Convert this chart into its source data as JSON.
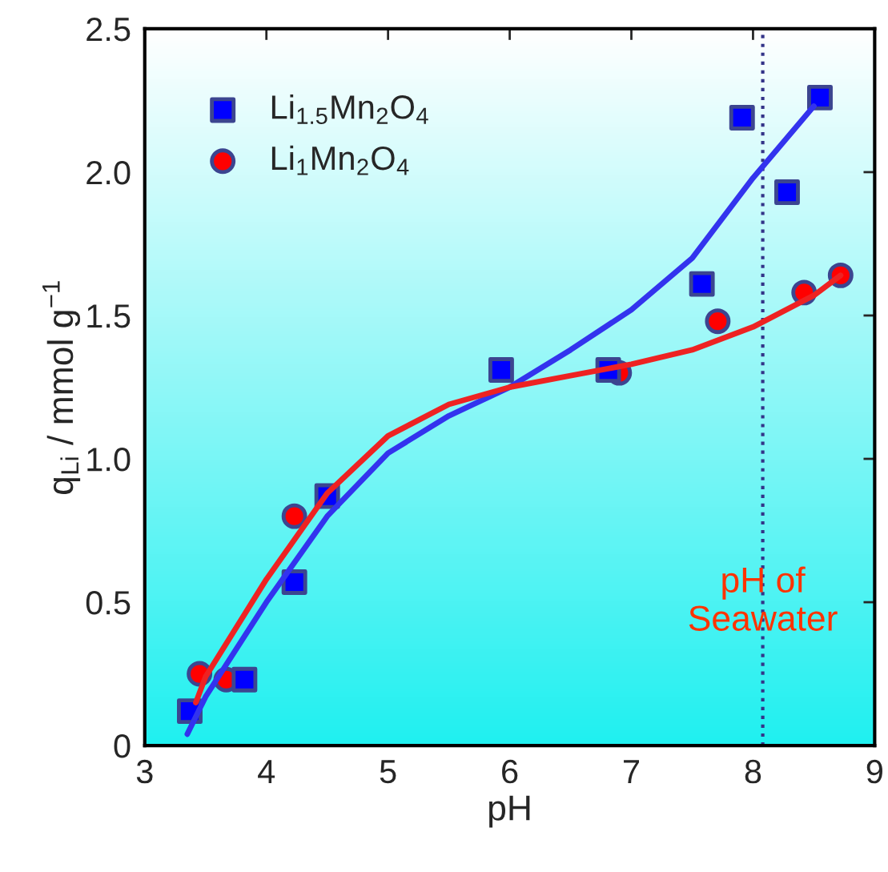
{
  "chart_data": {
    "type": "scatter",
    "xlabel": "pH",
    "ylabel": "q$_{Li}$ / mmol g$^{−1}$",
    "xlim": [
      3,
      9
    ],
    "ylim": [
      0,
      2.5
    ],
    "xticks": [
      3,
      4,
      5,
      6,
      7,
      8,
      9
    ],
    "yticks": [
      0,
      0.5,
      {
        "value": 1,
        "label": "1.0"
      },
      1.5,
      {
        "value": 2,
        "label": "2.0"
      },
      2.5
    ],
    "legend": "top left",
    "grid": false,
    "series": [
      {
        "name": "Li$_{1.5}$Mn$_{2}$O$_{4}$",
        "marker": "square",
        "color": "#0000ff",
        "x": [
          3.37,
          3.82,
          4.23,
          4.5,
          5.93,
          6.81,
          7.58,
          7.91,
          8.28,
          8.55
        ],
        "values": [
          0.12,
          0.23,
          0.57,
          0.87,
          1.31,
          1.31,
          1.61,
          2.19,
          1.93,
          2.26
        ]
      },
      {
        "name": "Li$_{1}$Mn$_{2}$O$_{4}$",
        "marker": "circle",
        "color": "#ff0000",
        "x": [
          3.45,
          3.67,
          4.23,
          6.9,
          7.71,
          8.42,
          8.72
        ],
        "values": [
          0.25,
          0.23,
          0.8,
          1.3,
          1.48,
          1.58,
          1.64
        ]
      },
      {
        "type": "line",
        "color": "#3333ee",
        "x": [
          3.35,
          3.5,
          4.0,
          4.5,
          5.0,
          5.5,
          6.0,
          6.5,
          7.0,
          7.5,
          8.0,
          8.5
        ],
        "values": [
          0.04,
          0.17,
          0.5,
          0.8,
          1.02,
          1.15,
          1.25,
          1.38,
          1.52,
          1.7,
          1.98,
          2.23
        ]
      },
      {
        "type": "line",
        "color": "#ee2222",
        "x": [
          3.42,
          3.5,
          4.0,
          4.5,
          5.0,
          5.5,
          6.0,
          6.5,
          7.0,
          7.5,
          8.0,
          8.5,
          8.72
        ],
        "values": [
          0.15,
          0.24,
          0.58,
          0.88,
          1.08,
          1.19,
          1.25,
          1.29,
          1.33,
          1.38,
          1.46,
          1.57,
          1.64
        ]
      }
    ],
    "ref_lines": [
      {
        "axis": "x",
        "value": 8.08,
        "color": "#333388",
        "line_style": "dotted"
      }
    ],
    "annotations": [
      {
        "text": "pH of\nSeawater",
        "x": 8.08,
        "y": 0.5
      }
    ]
  }
}
